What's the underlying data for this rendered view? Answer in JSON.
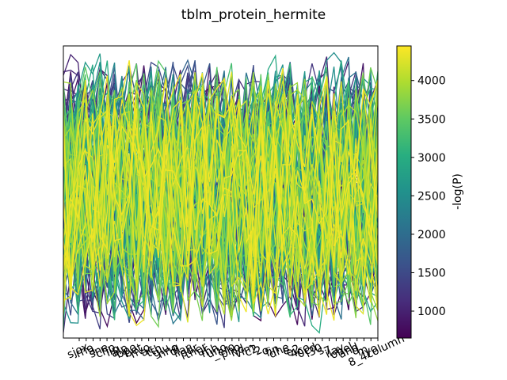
{
  "chart_data": {
    "type": "line",
    "title": "tblm_protein_hermite",
    "xlabel": "",
    "ylabel": "",
    "y_ticks_visible": false,
    "grid": false,
    "legend": "none",
    "colorbar": {
      "label": "-log(P)",
      "colormap": "viridis",
      "range": [
        650,
        4450
      ],
      "ticks": [
        "1000",
        "1500",
        "2000",
        "2500",
        "3000",
        "3500",
        "4000"
      ],
      "tick_values": [
        1000,
        1500,
        2000,
        2500,
        3000,
        3500,
        4000
      ]
    },
    "series_count": 150,
    "x_tick_labels": [
      "sjox",
      "rho",
      "a",
      "sne",
      "chp",
      "lip",
      "alp",
      "bpo",
      "bet",
      "nvo",
      "ac",
      "tth",
      "glu",
      "nno",
      "dl",
      "ilar",
      "pdr",
      "ther",
      "ur",
      "mh",
      "uno",
      "_ero",
      "pho",
      "nd",
      "vim",
      "c2",
      "2",
      "o",
      "fin",
      "dhe",
      "e",
      "e2",
      "4co",
      "0cd",
      "i30",
      "s",
      "7",
      "ilay",
      "ohel",
      "and",
      "d",
      "m",
      "iyo",
      "8_4column"
    ],
    "note": "Dense parallel-coordinates style line plot of many samples across labelled features; each line coloured by its -log(P) value."
  }
}
